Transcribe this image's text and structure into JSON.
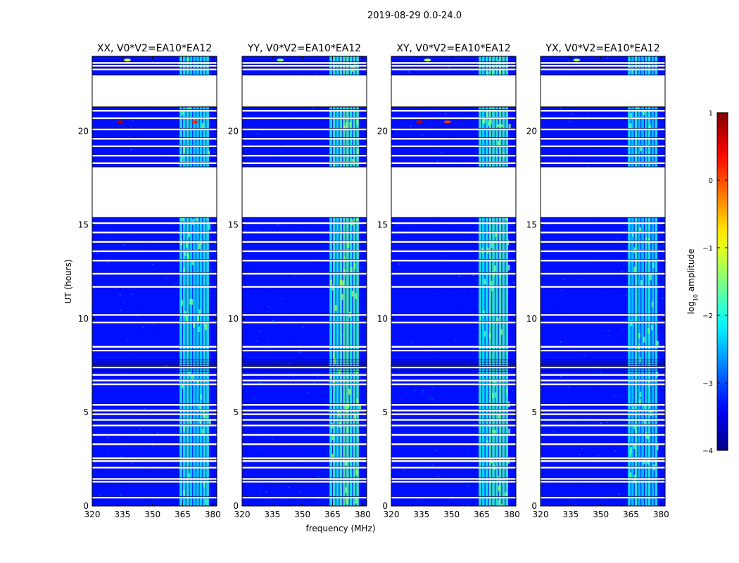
{
  "figure": {
    "title": "2019-08-29 0.0-24.0",
    "xlabel": "frequency (MHz)",
    "ylabel": "UT (hours)"
  },
  "chart_data": [
    {
      "type": "heatmap",
      "title": "XX, V0*V2=EA10*EA12",
      "xlabel": "frequency (MHz)",
      "ylabel": "UT (hours)",
      "xlim": [
        320,
        382
      ],
      "ylim": [
        0,
        24
      ],
      "xticks": [
        320,
        335,
        350,
        365,
        380
      ],
      "yticks": [
        0,
        5,
        10,
        15,
        20
      ],
      "grid": false,
      "typical_log10_amplitude": -3.3,
      "rfi_band_mhz": [
        363.5,
        378.5
      ],
      "rfi_log10_amplitude": -2.0,
      "data_gaps_ut": [
        [
          15.4,
          18.1
        ],
        [
          21.3,
          23.0
        ]
      ],
      "hotspots": [
        {
          "freq_mhz": 337.5,
          "ut": 23.8,
          "log10_amplitude": -1.0
        },
        {
          "freq_mhz": 334.0,
          "ut": 20.5,
          "log10_amplitude": 0.8
        },
        {
          "freq_mhz": 371.0,
          "ut": 20.5,
          "log10_amplitude": 0.2
        }
      ]
    },
    {
      "type": "heatmap",
      "title": "YY, V0*V2=EA10*EA12",
      "xlabel": "frequency (MHz)",
      "ylabel": "UT (hours)",
      "xlim": [
        320,
        382
      ],
      "ylim": [
        0,
        24
      ],
      "xticks": [
        320,
        335,
        350,
        365,
        380
      ],
      "yticks": [
        0,
        5,
        10,
        15,
        20
      ],
      "grid": false,
      "typical_log10_amplitude": -3.3,
      "rfi_band_mhz": [
        363.5,
        378.5
      ],
      "rfi_log10_amplitude": -1.8,
      "data_gaps_ut": [
        [
          15.4,
          18.1
        ],
        [
          21.3,
          23.0
        ]
      ],
      "hotspots": [
        {
          "freq_mhz": 339.0,
          "ut": 23.8,
          "log10_amplitude": -1.5
        }
      ]
    },
    {
      "type": "heatmap",
      "title": "XY, V0*V2=EA10*EA12",
      "xlabel": "frequency (MHz)",
      "ylabel": "UT (hours)",
      "xlim": [
        320,
        382
      ],
      "ylim": [
        0,
        24
      ],
      "xticks": [
        320,
        335,
        350,
        365,
        380
      ],
      "yticks": [
        0,
        5,
        10,
        15,
        20
      ],
      "grid": false,
      "typical_log10_amplitude": -3.3,
      "rfi_band_mhz": [
        363.5,
        378.5
      ],
      "rfi_log10_amplitude": -2.0,
      "data_gaps_ut": [
        [
          15.4,
          18.1
        ],
        [
          21.3,
          23.0
        ]
      ],
      "hotspots": [
        {
          "freq_mhz": 338.0,
          "ut": 23.8,
          "log10_amplitude": -1.2
        },
        {
          "freq_mhz": 334.0,
          "ut": 20.5,
          "log10_amplitude": 0.7
        },
        {
          "freq_mhz": 348.0,
          "ut": 20.5,
          "log10_amplitude": 0.1
        },
        {
          "freq_mhz": 374.0,
          "ut": 20.3,
          "log10_amplitude": -1.6
        }
      ]
    },
    {
      "type": "heatmap",
      "title": "YX, V0*V2=EA10*EA12",
      "xlabel": "frequency (MHz)",
      "ylabel": "UT (hours)",
      "xlim": [
        320,
        382
      ],
      "ylim": [
        0,
        24
      ],
      "xticks": [
        320,
        335,
        350,
        365,
        380
      ],
      "yticks": [
        0,
        5,
        10,
        15,
        20
      ],
      "grid": false,
      "typical_log10_amplitude": -3.3,
      "rfi_band_mhz": [
        363.5,
        378.5
      ],
      "rfi_log10_amplitude": -2.1,
      "data_gaps_ut": [
        [
          15.4,
          18.1
        ],
        [
          21.3,
          23.0
        ]
      ],
      "hotspots": [
        {
          "freq_mhz": 338.0,
          "ut": 23.8,
          "log10_amplitude": -1.3
        }
      ]
    }
  ],
  "colorbar": {
    "label": "log10 amplitude",
    "label_base": "log",
    "label_sub": "10",
    "label_rest": " amplitude",
    "min": -4,
    "max": 1,
    "ticks": [
      "1",
      "0",
      "−1",
      "−2",
      "−3",
      "−4"
    ],
    "colormap": "jet"
  },
  "colors": {
    "background": "#ffffff",
    "axis": "#000000"
  }
}
